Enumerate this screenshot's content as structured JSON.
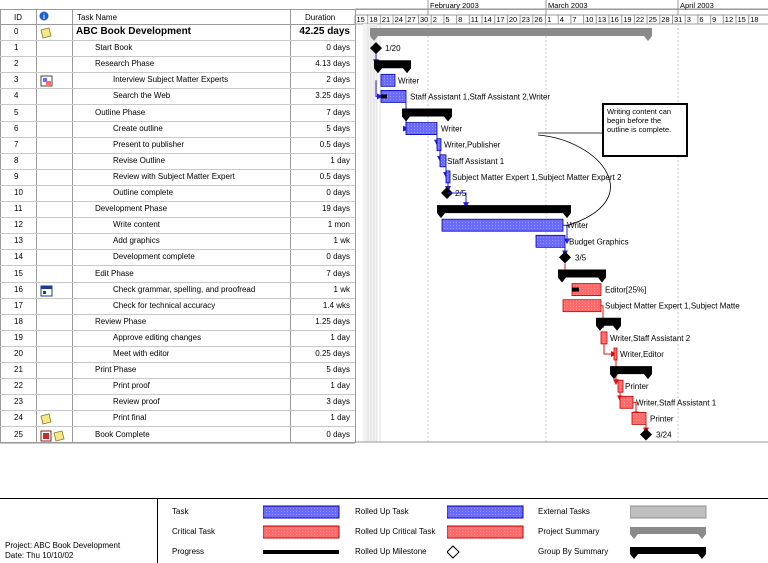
{
  "table": {
    "headers": {
      "id": "ID",
      "info": "i",
      "name": "Task Name",
      "duration": "Duration"
    },
    "rows": [
      {
        "id": "0",
        "name": "ABC Book Development",
        "duration": "42.25 days",
        "indent": 0,
        "summary": true,
        "icon": "note-icon"
      },
      {
        "id": "1",
        "name": "Start Book",
        "duration": "0 days",
        "indent": 1,
        "icon": ""
      },
      {
        "id": "2",
        "name": "Research Phase",
        "duration": "4.13 days",
        "indent": 1,
        "icon": ""
      },
      {
        "id": "3",
        "name": "Interview Subject Matter Experts",
        "duration": "2 days",
        "indent": 2,
        "icon": "resource-icon"
      },
      {
        "id": "4",
        "name": "Search the Web",
        "duration": "3.25 days",
        "indent": 2,
        "icon": ""
      },
      {
        "id": "5",
        "name": "Outline Phase",
        "duration": "7 days",
        "indent": 1,
        "icon": ""
      },
      {
        "id": "6",
        "name": "Create outline",
        "duration": "5 days",
        "indent": 2,
        "icon": ""
      },
      {
        "id": "7",
        "name": "Present to publisher",
        "duration": "0.5 days",
        "indent": 2,
        "icon": ""
      },
      {
        "id": "8",
        "name": "Revise Outline",
        "duration": "1 day",
        "indent": 2,
        "icon": ""
      },
      {
        "id": "9",
        "name": "Review with Subject Matter Expert",
        "duration": "0.5 days",
        "indent": 2,
        "icon": ""
      },
      {
        "id": "10",
        "name": "Outline complete",
        "duration": "0 days",
        "indent": 2,
        "icon": ""
      },
      {
        "id": "11",
        "name": "Development Phase",
        "duration": "19 days",
        "indent": 1,
        "icon": ""
      },
      {
        "id": "12",
        "name": "Write content",
        "duration": "1 mon",
        "indent": 2,
        "icon": ""
      },
      {
        "id": "13",
        "name": "Add graphics",
        "duration": "1 wk",
        "indent": 2,
        "icon": ""
      },
      {
        "id": "14",
        "name": "Development complete",
        "duration": "0 days",
        "indent": 2,
        "icon": ""
      },
      {
        "id": "15",
        "name": "Edit Phase",
        "duration": "7 days",
        "indent": 1,
        "icon": ""
      },
      {
        "id": "16",
        "name": "Check grammar, spelling, and proofread",
        "duration": "1 wk",
        "indent": 2,
        "icon": "calendar-icon"
      },
      {
        "id": "17",
        "name": "Check for technical accuracy",
        "duration": "1.4 wks",
        "indent": 2,
        "icon": ""
      },
      {
        "id": "18",
        "name": "Review Phase",
        "duration": "1.25 days",
        "indent": 1,
        "icon": ""
      },
      {
        "id": "19",
        "name": "Approve editing changes",
        "duration": "1 day",
        "indent": 2,
        "icon": ""
      },
      {
        "id": "20",
        "name": "Meet with editor",
        "duration": "0.25 days",
        "indent": 2,
        "icon": ""
      },
      {
        "id": "21",
        "name": "Print Phase",
        "duration": "5 days",
        "indent": 1,
        "icon": ""
      },
      {
        "id": "22",
        "name": "Print proof",
        "duration": "1 day",
        "indent": 2,
        "icon": ""
      },
      {
        "id": "23",
        "name": "Review proof",
        "duration": "3 days",
        "indent": 2,
        "icon": ""
      },
      {
        "id": "24",
        "name": "Print final",
        "duration": "1 day",
        "indent": 2,
        "icon": "note-icon"
      },
      {
        "id": "25",
        "name": "Book Complete",
        "duration": "0 days",
        "indent": 1,
        "icon": "calendar-note-icon"
      }
    ]
  },
  "timescale": {
    "months": [
      "February 2003",
      "March 2003",
      "April 2003"
    ],
    "days": [
      "15",
      "18",
      "21",
      "24",
      "27",
      "30",
      "2",
      "5",
      "8",
      "11",
      "14",
      "17",
      "20",
      "23",
      "26",
      "1",
      "4",
      "7",
      "10",
      "13",
      "16",
      "19",
      "22",
      "25",
      "28",
      "31",
      "3",
      "6",
      "9",
      "12",
      "15",
      "18"
    ]
  },
  "gantt_labels": {
    "r1": "1/20",
    "r3": "Writer",
    "r4": "Staff Assistant 1,Staff Assistant 2,Writer",
    "r6": "Writer",
    "r7": "Writer,Publisher",
    "r8": "Staff Assistant 1",
    "r9": "Subject Matter Expert 1,Subject Matter Expert 2",
    "r10": "2/5",
    "r12": "Writer",
    "r13": "Budget Graphics",
    "r14": "3/5",
    "r16": "Editor[25%]",
    "r17": "Subject Matter Expert 1,Subject Matte",
    "r19": "Writer,Staff Assistant 2",
    "r20": "Writer,Editor",
    "r22": "Printer",
    "r23": "Writer,Staff Assistant 1",
    "r24": "Printer",
    "r25": "3/24"
  },
  "note": "Writing content can begin before the outline is complete.",
  "legend": [
    {
      "label": "Task",
      "kind": "task"
    },
    {
      "label": "Rolled Up Task",
      "kind": "rolled-task"
    },
    {
      "label": "External Tasks",
      "kind": "external"
    },
    {
      "label": "Critical Task",
      "kind": "critical"
    },
    {
      "label": "Rolled Up Critical Task",
      "kind": "rolled-critical"
    },
    {
      "label": "Project Summary",
      "kind": "project-summary"
    },
    {
      "label": "Progress",
      "kind": "progress"
    },
    {
      "label": "Rolled Up Milestone",
      "kind": "milestone"
    },
    {
      "label": "Group By Summary",
      "kind": "group-summary"
    }
  ],
  "footer": {
    "project": "Project: ABC Book Development",
    "date": "Date: Thu 10/10/02"
  },
  "colors": {
    "task": "#6a6aff",
    "critical": "#ff6a6a",
    "summary": "#000000",
    "project_summary": "#8a8a8a",
    "external": "#c0c0c0"
  }
}
